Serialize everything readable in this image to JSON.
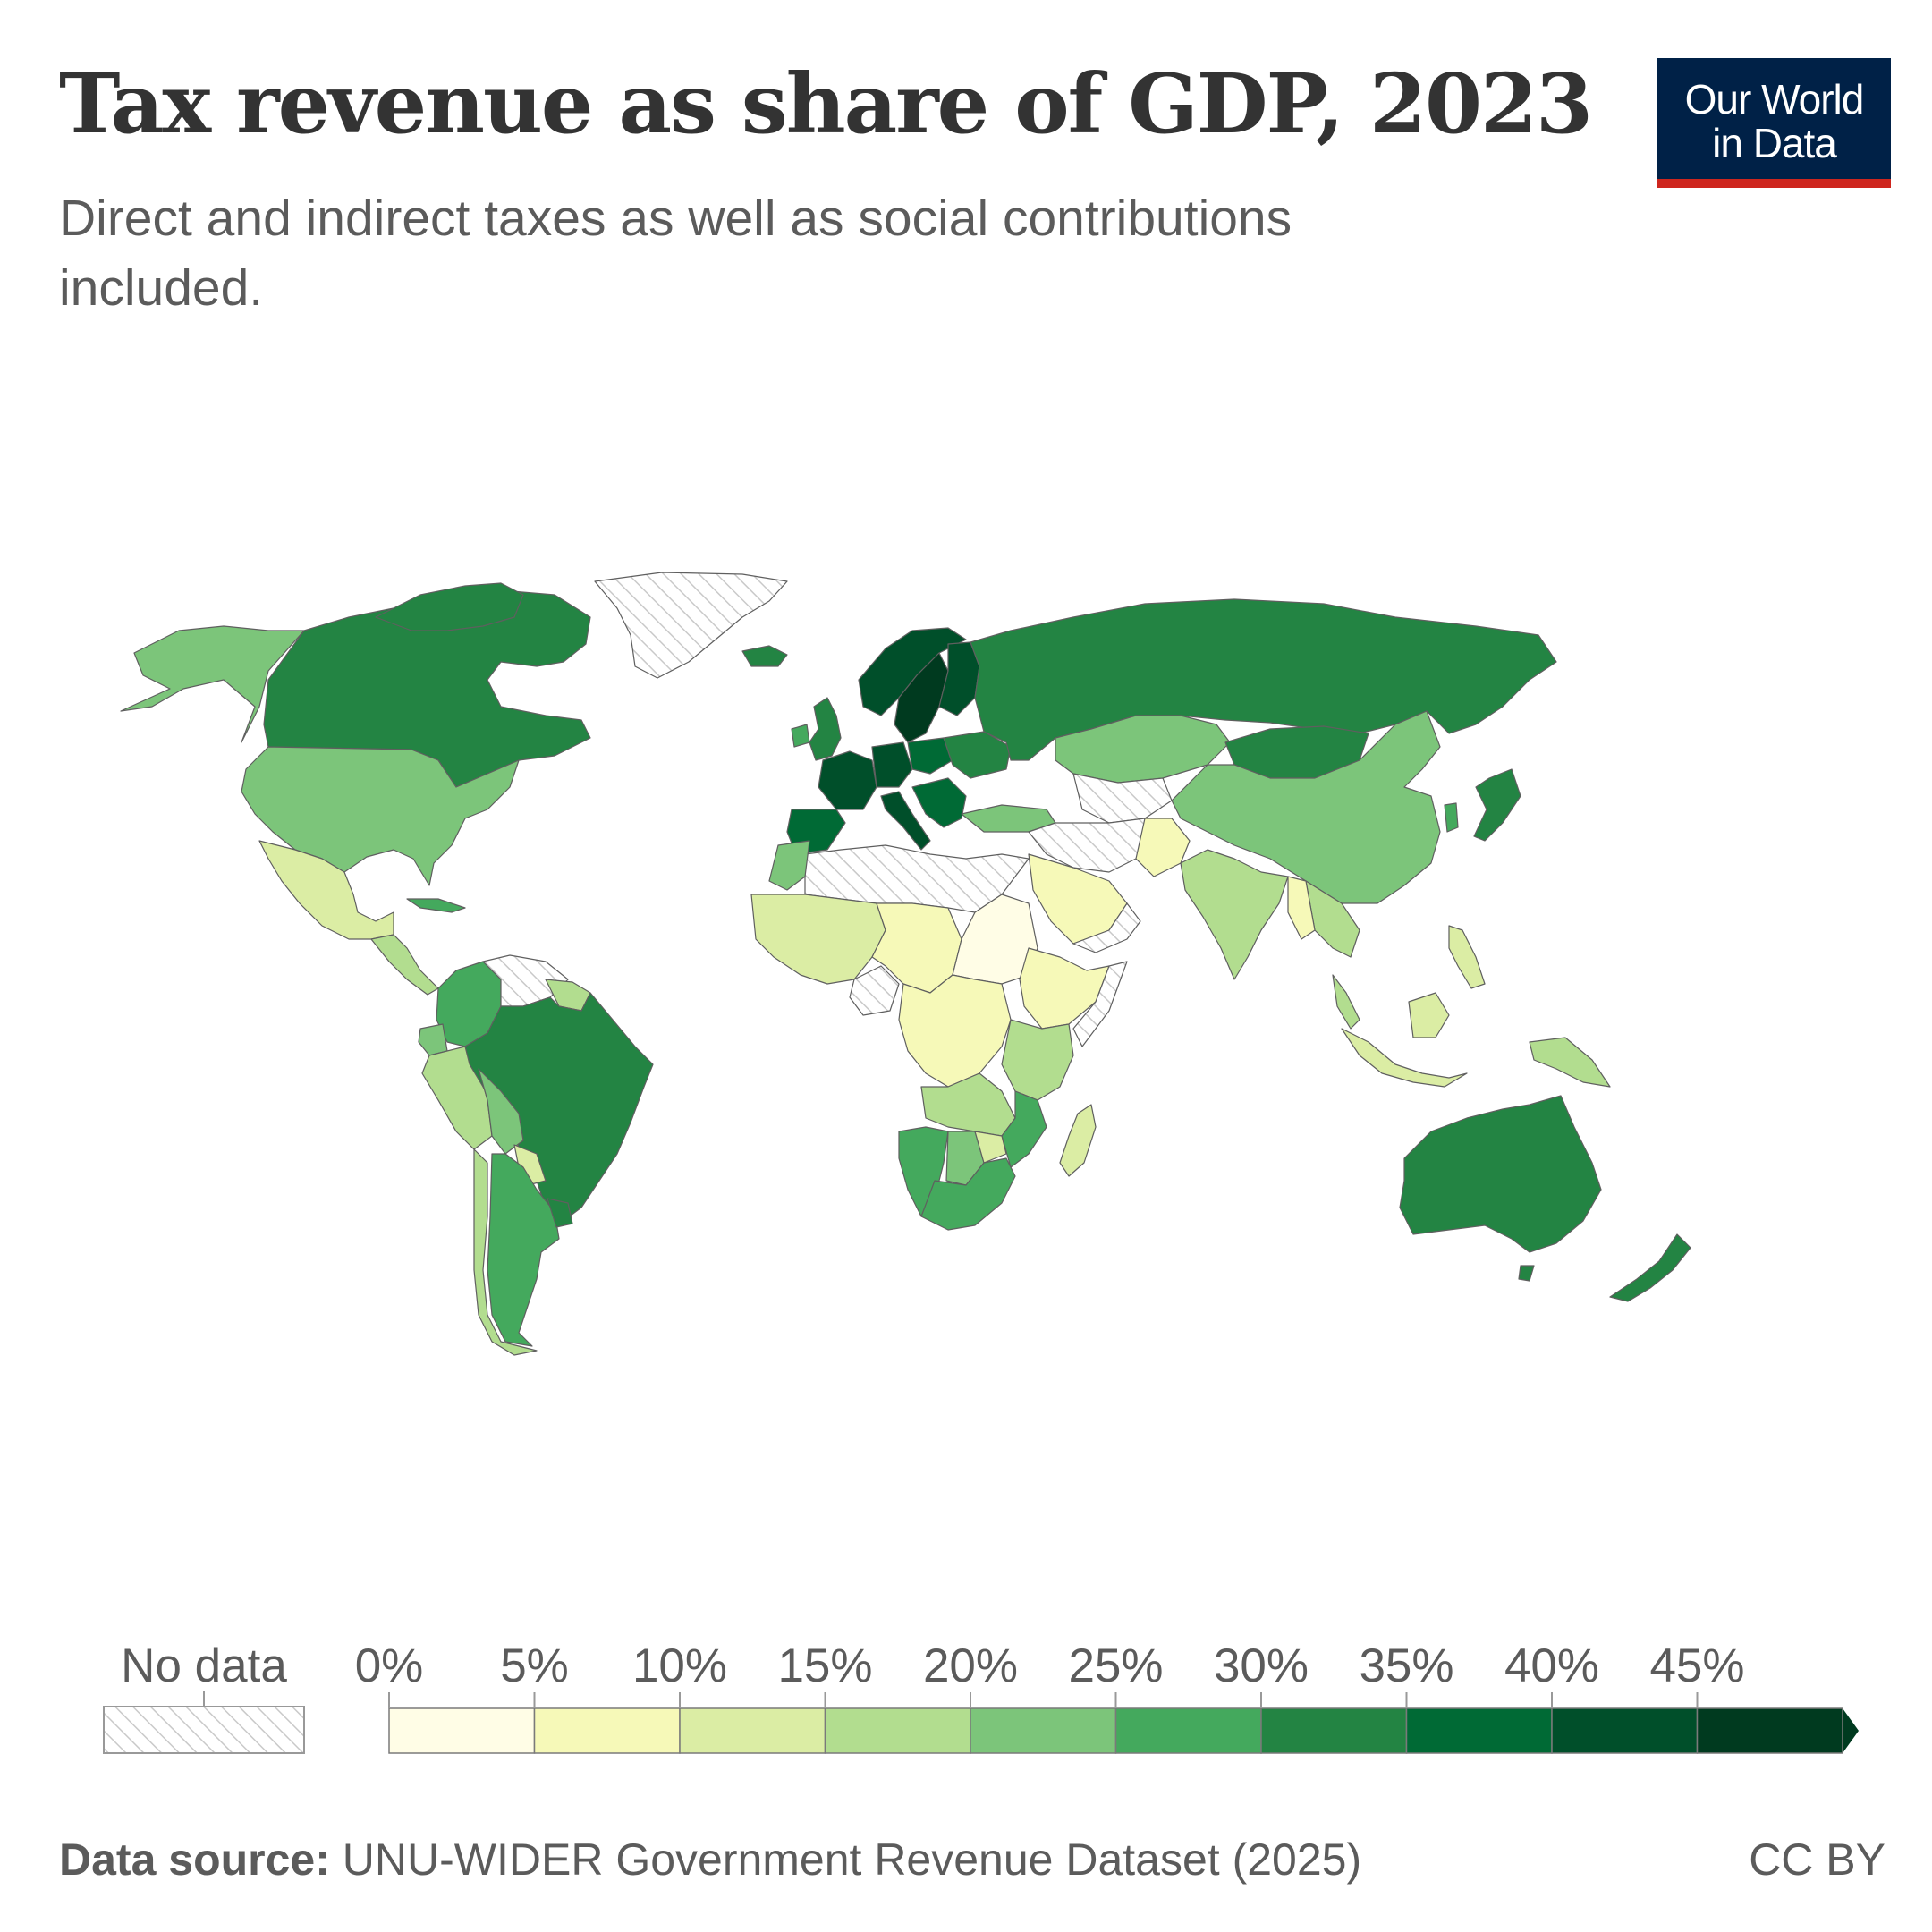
{
  "header": {
    "title": "Tax revenue as share of GDP, 2023",
    "subtitle": "Direct and indirect taxes as well as social contributions included."
  },
  "logo": {
    "line1": "Our World",
    "line2": "in Data",
    "bg_color": "#002147",
    "accent_color": "#ce261e"
  },
  "legend": {
    "no_data_label": "No data",
    "bins": [
      "0%",
      "5%",
      "10%",
      "15%",
      "20%",
      "25%",
      "30%",
      "35%",
      "40%",
      "45%"
    ],
    "colors": [
      "#fffde6",
      "#f6f9b8",
      "#dbeda4",
      "#b2dd8f",
      "#7cc57a",
      "#44a95d",
      "#238443",
      "#006a35",
      "#004f2a",
      "#003a1f"
    ]
  },
  "footer": {
    "source_label": "Data source:",
    "source_text": "UNU-WIDER Government Revenue Dataset (2025)",
    "license": "CC BY"
  }
}
